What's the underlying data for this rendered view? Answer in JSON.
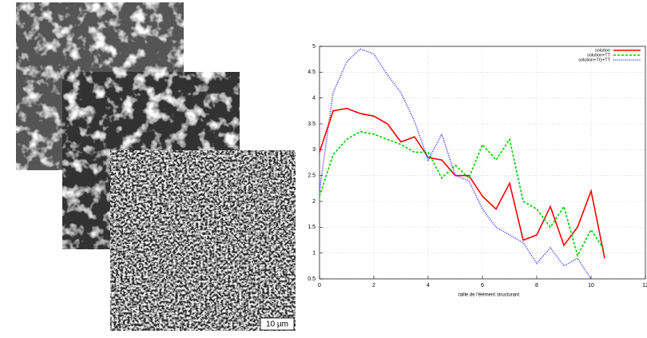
{
  "scale_bar": "10 µm",
  "chart_data": {
    "type": "line",
    "xlabel": "taille de l'élément structurant",
    "x": [
      0,
      0.5,
      1,
      1.5,
      2,
      2.5,
      3,
      3.5,
      4,
      4.5,
      5,
      5.5,
      6,
      6.5,
      7,
      7.5,
      8,
      8.5,
      9,
      9.5,
      10,
      10.5
    ],
    "series": [
      {
        "name": "solution",
        "color": "#ff0000",
        "dash": "solid",
        "values": [
          2.95,
          3.75,
          3.8,
          3.7,
          3.65,
          3.5,
          3.15,
          3.25,
          2.85,
          2.8,
          2.5,
          2.5,
          2.1,
          1.85,
          2.35,
          1.25,
          1.35,
          1.9,
          1.15,
          1.5,
          2.2,
          0.9
        ]
      },
      {
        "name": "solution+TT",
        "color": "#00cc00",
        "dash": "dashed",
        "values": [
          2.1,
          2.9,
          3.2,
          3.35,
          3.3,
          3.2,
          3.1,
          2.95,
          2.95,
          2.45,
          2.7,
          2.45,
          3.1,
          2.8,
          3.2,
          2.0,
          1.85,
          1.5,
          1.9,
          0.95,
          1.45,
          1.05
        ]
      },
      {
        "name": "solution+TG+TT",
        "color": "#3333ff",
        "dash": "dotted",
        "values": [
          2.2,
          4.1,
          4.7,
          4.95,
          4.85,
          4.45,
          4.1,
          3.55,
          2.8,
          3.3,
          2.5,
          2.4,
          1.85,
          1.5,
          1.35,
          1.2,
          0.8,
          1.1,
          0.75,
          0.9,
          0.5,
          null
        ]
      }
    ],
    "xlim": [
      0,
      12
    ],
    "xticks": [
      0,
      2,
      4,
      6,
      8,
      10,
      12
    ],
    "ylim": [
      0.5,
      5
    ],
    "yticks": [
      0.5,
      1,
      1.5,
      2,
      2.5,
      3,
      3.5,
      4,
      4.5,
      5
    ],
    "grid": true,
    "legend": "upper right"
  }
}
